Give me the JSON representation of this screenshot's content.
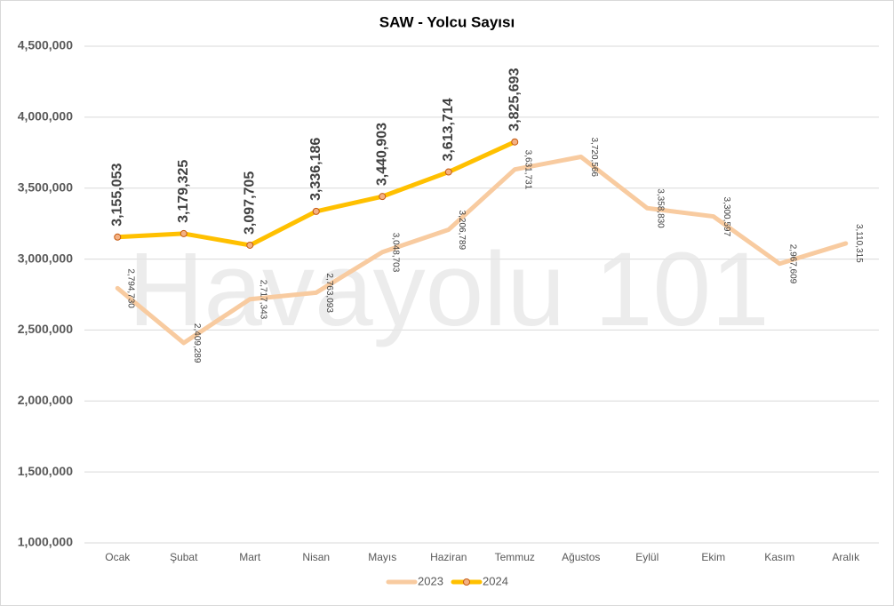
{
  "chart_data": {
    "type": "line",
    "title": "SAW - Yolcu Sayısı",
    "watermark": "Havayolu 101",
    "categories": [
      "Ocak",
      "Şubat",
      "Mart",
      "Nisan",
      "Mayıs",
      "Haziran",
      "Temmuz",
      "Ağustos",
      "Eylül",
      "Ekim",
      "Kasım",
      "Aralık"
    ],
    "series": [
      {
        "name": "2023",
        "color": "#f8cba0",
        "values": [
          2794730,
          2409289,
          2717343,
          2763093,
          3048703,
          3206789,
          3631731,
          3720566,
          3358830,
          3300597,
          2967609,
          3110315
        ],
        "value_labels": [
          "2,794,730",
          "2,409,289",
          "2,717,343",
          "2,763,093",
          "3,048,703",
          "3,206,789",
          "3,631,731",
          "3,720,566",
          "3,358,830",
          "3,300,597",
          "2,967,609",
          "3,110,315"
        ]
      },
      {
        "name": "2024",
        "color": "#ffc000",
        "marker_color": "#f4b183",
        "values": [
          3155053,
          3179325,
          3097705,
          3336186,
          3440903,
          3613714,
          3825693,
          null,
          null,
          null,
          null,
          null
        ],
        "value_labels": [
          "3,155,053",
          "3,179,325",
          "3,097,705",
          "3,336,186",
          "3,440,903",
          "3,613,714",
          "3,825,693",
          null,
          null,
          null,
          null,
          null
        ]
      }
    ],
    "ylim": [
      1000000,
      4500000
    ],
    "yticks": [
      {
        "value": 1000000,
        "label": "1,000,000"
      },
      {
        "value": 1500000,
        "label": "1,500,000"
      },
      {
        "value": 2000000,
        "label": "2,000,000"
      },
      {
        "value": 2500000,
        "label": "2,500,000"
      },
      {
        "value": 3000000,
        "label": "3,000,000"
      },
      {
        "value": 3500000,
        "label": "3,500,000"
      },
      {
        "value": 4000000,
        "label": "4,000,000"
      },
      {
        "value": 4500000,
        "label": "4,500,000"
      }
    ],
    "grid": true,
    "legend": "bottom"
  }
}
